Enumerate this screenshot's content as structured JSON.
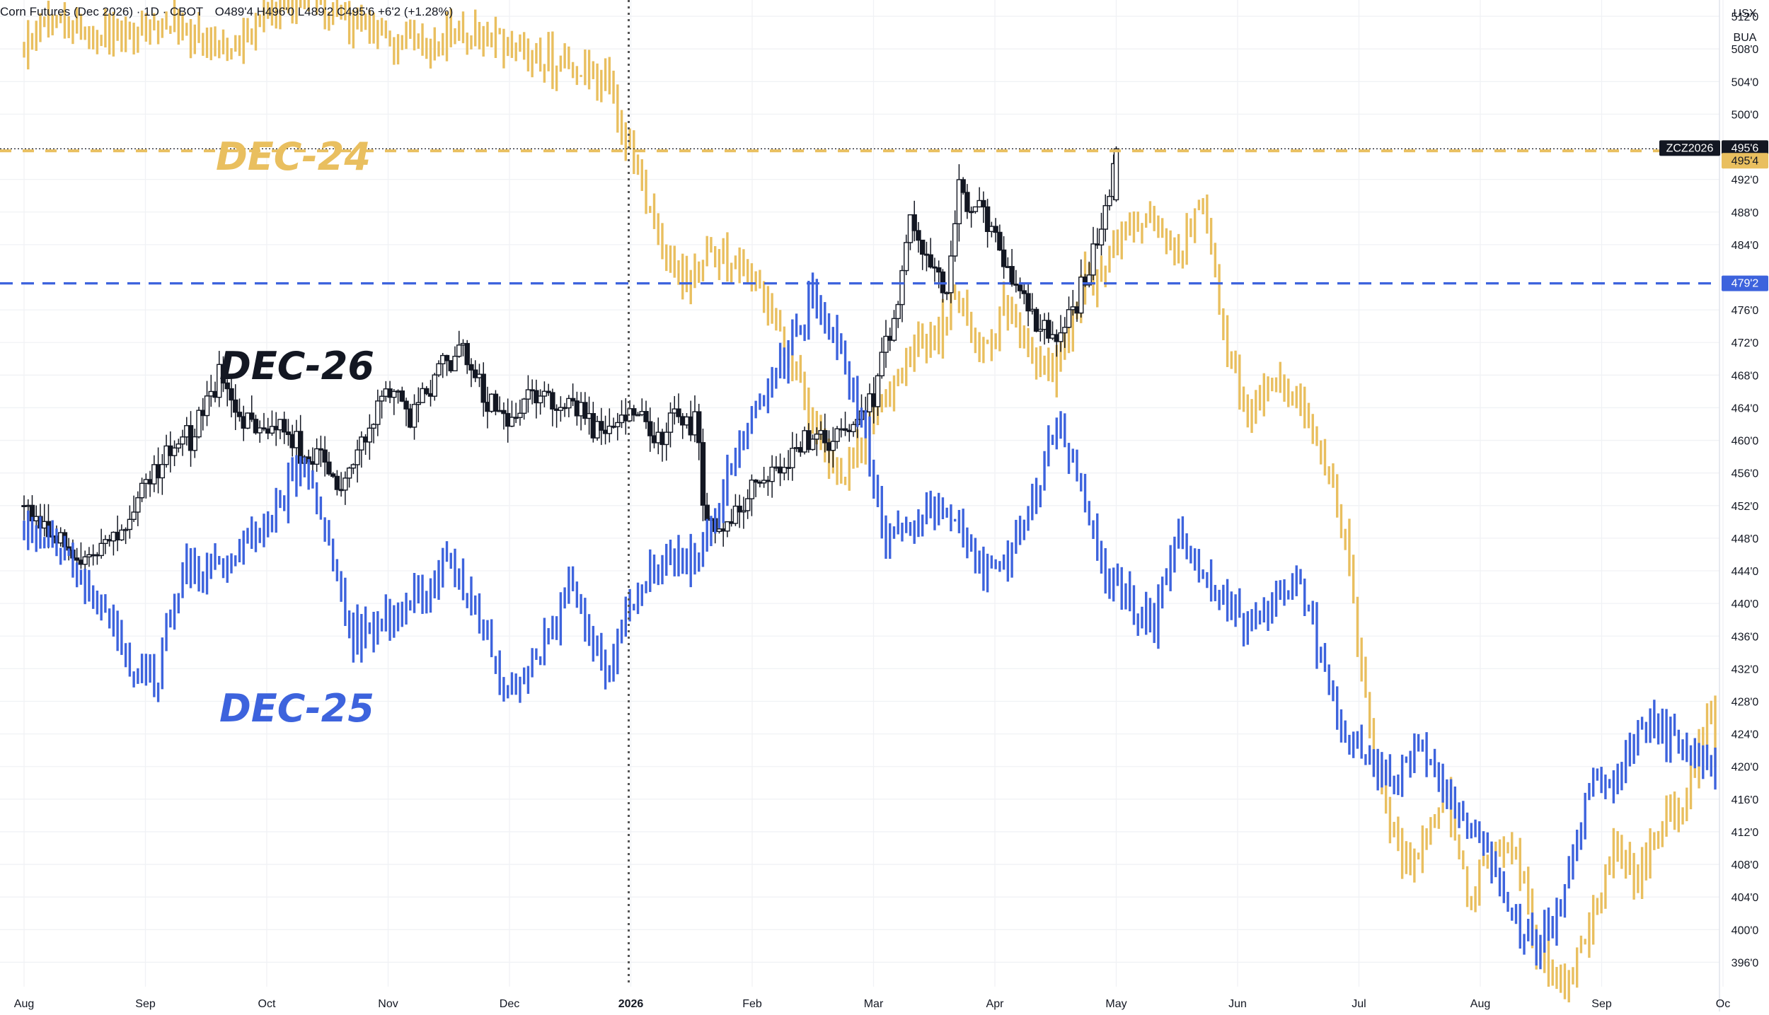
{
  "header": {
    "title": "Corn Futures (Dec 2026) · 1D · CBOT",
    "ohlc": "O489'4  H496'0  L489'2  C495'6  +6'2 (+1.28%)"
  },
  "units": {
    "currency": "USX",
    "per": "BUA"
  },
  "colors": {
    "dec26": "#131722",
    "dec25": "#3d63dd",
    "dec24": "#e9bf5f",
    "background": "#ffffff",
    "grid": "#f0f2f5"
  },
  "chart_data": {
    "type": "bar",
    "title": "",
    "x_axis": {
      "ticks": [
        "Aug",
        "Sep",
        "Oct",
        "Nov",
        "Dec",
        "2026",
        "Feb",
        "Mar",
        "Apr",
        "May",
        "Jun",
        "Jul",
        "Aug",
        "Sep",
        "Oc"
      ]
    },
    "y_axis": {
      "min": 393,
      "max": 514,
      "unit": "cents/bu",
      "ticks": [
        "512'0",
        "508'0",
        "504'0",
        "500'0",
        "492'0",
        "488'0",
        "484'0",
        "476'0",
        "472'0",
        "468'0",
        "464'0",
        "460'0",
        "456'0",
        "452'0",
        "448'0",
        "444'0",
        "440'0",
        "436'0",
        "432'0",
        "428'0",
        "424'0",
        "420'0",
        "416'0",
        "412'0",
        "408'0",
        "404'0",
        "400'0",
        "396'0"
      ],
      "tick_values": [
        512,
        508,
        504,
        500,
        492,
        488,
        484,
        476,
        472,
        468,
        464,
        460,
        456,
        452,
        448,
        444,
        440,
        436,
        432,
        428,
        424,
        420,
        416,
        412,
        408,
        404,
        400,
        396
      ]
    },
    "series": [
      {
        "name": "DEC-24",
        "style": "ohlc-bars",
        "color": "#e9bf5f",
        "x_range": [
          0,
          13.95
        ],
        "path": [
          [
            0,
            508
          ],
          [
            0.3,
            512
          ],
          [
            0.6,
            509
          ],
          [
            0.9,
            510
          ],
          [
            1.2,
            511
          ],
          [
            1.5,
            508
          ],
          [
            1.8,
            509
          ],
          [
            2.1,
            513
          ],
          [
            2.4,
            514
          ],
          [
            2.7,
            511
          ],
          [
            3,
            509
          ],
          [
            3.3,
            508
          ],
          [
            3.6,
            511
          ],
          [
            3.9,
            509
          ],
          [
            4.2,
            507
          ],
          [
            4.5,
            506
          ],
          [
            4.8,
            504
          ],
          [
            5.0,
            495
          ],
          [
            5.1,
            492
          ],
          [
            5.3,
            482
          ],
          [
            5.5,
            479
          ],
          [
            5.7,
            483
          ],
          [
            6.0,
            481
          ],
          [
            6.3,
            471
          ],
          [
            6.5,
            462
          ],
          [
            6.7,
            454
          ],
          [
            6.9,
            460
          ],
          [
            7.1,
            465
          ],
          [
            7.3,
            470
          ],
          [
            7.5,
            472
          ],
          [
            7.7,
            478
          ],
          [
            7.9,
            470
          ],
          [
            8.1,
            478
          ],
          [
            8.3,
            470
          ],
          [
            8.5,
            468
          ],
          [
            8.7,
            478
          ],
          [
            8.9,
            482
          ],
          [
            9.1,
            486
          ],
          [
            9.3,
            489
          ],
          [
            9.5,
            482
          ],
          [
            9.7,
            490
          ],
          [
            9.9,
            472
          ],
          [
            10.1,
            463
          ],
          [
            10.3,
            468
          ],
          [
            10.5,
            465
          ],
          [
            10.7,
            458
          ],
          [
            10.9,
            448
          ],
          [
            11.0,
            434
          ],
          [
            11.1,
            423
          ],
          [
            11.3,
            410
          ],
          [
            11.5,
            409
          ],
          [
            11.7,
            418
          ],
          [
            11.9,
            403
          ],
          [
            12.1,
            410
          ],
          [
            12.3,
            409
          ],
          [
            12.5,
            396
          ],
          [
            12.7,
            394
          ],
          [
            12.9,
            400
          ],
          [
            13.1,
            410
          ],
          [
            13.3,
            406
          ],
          [
            13.5,
            413
          ],
          [
            13.7,
            416
          ],
          [
            13.9,
            428
          ],
          [
            13.95,
            421
          ]
        ]
      },
      {
        "name": "DEC-26",
        "style": "candles",
        "color": "#131722",
        "x_range": [
          0,
          9.0
        ],
        "path": [
          [
            0,
            452
          ],
          [
            0.2,
            450
          ],
          [
            0.4,
            446
          ],
          [
            0.6,
            447
          ],
          [
            0.8,
            449
          ],
          [
            1.0,
            454
          ],
          [
            1.2,
            460
          ],
          [
            1.4,
            461
          ],
          [
            1.6,
            468
          ],
          [
            1.8,
            462
          ],
          [
            2.0,
            461
          ],
          [
            2.2,
            460
          ],
          [
            2.4,
            458
          ],
          [
            2.6,
            454
          ],
          [
            2.8,
            460
          ],
          [
            3.0,
            466
          ],
          [
            3.2,
            463
          ],
          [
            3.4,
            468
          ],
          [
            3.6,
            472
          ],
          [
            3.8,
            465
          ],
          [
            4.0,
            462
          ],
          [
            4.2,
            467
          ],
          [
            4.4,
            464
          ],
          [
            4.6,
            463
          ],
          [
            4.8,
            461
          ],
          [
            5.0,
            464
          ],
          [
            5.2,
            460
          ],
          [
            5.4,
            463
          ],
          [
            5.55,
            462
          ],
          [
            5.6,
            452
          ],
          [
            5.7,
            447
          ],
          [
            5.9,
            451
          ],
          [
            6.0,
            456
          ],
          [
            6.2,
            455
          ],
          [
            6.4,
            460
          ],
          [
            6.6,
            460
          ],
          [
            6.8,
            462
          ],
          [
            7.0,
            466
          ],
          [
            7.2,
            476
          ],
          [
            7.3,
            488
          ],
          [
            7.4,
            483
          ],
          [
            7.6,
            478
          ],
          [
            7.7,
            490
          ],
          [
            7.9,
            489
          ],
          [
            8.1,
            482
          ],
          [
            8.3,
            475
          ],
          [
            8.5,
            472
          ],
          [
            8.7,
            478
          ],
          [
            8.9,
            487
          ],
          [
            9.0,
            495.75
          ]
        ]
      },
      {
        "name": "DEC-25",
        "style": "ohlc-bars",
        "color": "#3d63dd",
        "x_range": [
          0,
          13.95
        ],
        "path": [
          [
            0,
            449
          ],
          [
            0.3,
            447
          ],
          [
            0.6,
            440
          ],
          [
            0.9,
            432
          ],
          [
            1.1,
            431
          ],
          [
            1.3,
            444
          ],
          [
            1.6,
            445
          ],
          [
            1.9,
            448
          ],
          [
            2.1,
            452
          ],
          [
            2.3,
            458
          ],
          [
            2.5,
            448
          ],
          [
            2.7,
            436
          ],
          [
            3.0,
            438
          ],
          [
            3.3,
            441
          ],
          [
            3.5,
            446
          ],
          [
            3.8,
            436
          ],
          [
            4.0,
            429
          ],
          [
            4.3,
            436
          ],
          [
            4.5,
            441
          ],
          [
            4.8,
            432
          ],
          [
            5.0,
            440
          ],
          [
            5.2,
            444
          ],
          [
            5.4,
            446
          ],
          [
            5.6,
            446
          ],
          [
            5.9,
            460
          ],
          [
            6.1,
            465
          ],
          [
            6.3,
            471
          ],
          [
            6.5,
            478
          ],
          [
            6.7,
            472
          ],
          [
            6.9,
            462
          ],
          [
            7.1,
            447
          ],
          [
            7.3,
            450
          ],
          [
            7.5,
            452
          ],
          [
            7.7,
            450
          ],
          [
            7.9,
            443
          ],
          [
            8.1,
            446
          ],
          [
            8.3,
            452
          ],
          [
            8.5,
            462
          ],
          [
            8.7,
            455
          ],
          [
            8.9,
            444
          ],
          [
            9.1,
            440
          ],
          [
            9.3,
            437
          ],
          [
            9.5,
            448
          ],
          [
            9.7,
            443
          ],
          [
            9.9,
            440
          ],
          [
            10.1,
            437
          ],
          [
            10.3,
            440
          ],
          [
            10.5,
            444
          ],
          [
            10.7,
            432
          ],
          [
            10.9,
            422
          ],
          [
            11.1,
            420
          ],
          [
            11.3,
            418
          ],
          [
            11.5,
            423
          ],
          [
            11.7,
            417
          ],
          [
            11.9,
            414
          ],
          [
            12.1,
            407
          ],
          [
            12.3,
            400
          ],
          [
            12.5,
            398
          ],
          [
            12.7,
            404
          ],
          [
            12.9,
            419
          ],
          [
            13.1,
            418
          ],
          [
            13.3,
            424
          ],
          [
            13.5,
            425
          ],
          [
            13.7,
            422
          ],
          [
            13.95,
            418
          ]
        ]
      }
    ],
    "series_labels": [
      {
        "text": "DEC-24",
        "color": "#e9bf5f"
      },
      {
        "text": "DEC-26",
        "color": "#131722"
      },
      {
        "text": "DEC-25",
        "color": "#3d63dd"
      }
    ],
    "reference_lines": [
      {
        "value": 495.75,
        "label": "495'6",
        "tag": "ZCZ2026",
        "color": "#131722",
        "style": "dotted"
      },
      {
        "value": 495.5,
        "label": "495'4",
        "color": "#e9bf5f",
        "style": "dashed"
      },
      {
        "value": 479.25,
        "label": "479'2",
        "color": "#3d63dd",
        "style": "dashed"
      }
    ],
    "year_separator": {
      "at": "2026",
      "style": "dotted"
    },
    "grid": true
  }
}
